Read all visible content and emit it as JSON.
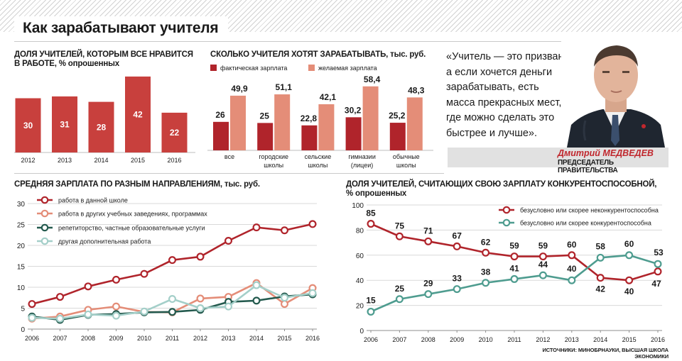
{
  "page": {
    "title": "Как зарабатывают учителя",
    "source": "ИСТОЧНИКИ: МИНОБРНАУКИ, ВЫСШАЯ ШКОЛА ЭКОНОМИКИ"
  },
  "quote": {
    "lines": [
      "«Учитель — это призвание,",
      "а если хочется деньги",
      "зарабатывать, есть",
      "масса прекрасных мест,",
      "где можно сделать это",
      "быстрее и лучше»."
    ],
    "name": "Дмитрий МЕДВЕДЕВ",
    "role": "ПРЕДСЕДАТЕЛЬ ПРАВИТЕЛЬСТВА"
  },
  "colors": {
    "dark_red": "#b0242b",
    "bar_red": "#c8403d",
    "salmon": "#e48d78",
    "dark_teal": "#245a4e",
    "teal": "#4e9c8f",
    "light_teal": "#a4cfc9",
    "grid": "#d9d9d9"
  },
  "chart_data": [
    {
      "id": "satisfied",
      "type": "bar",
      "title": "ДОЛЯ УЧИТЕЛЕЙ, КОТОРЫМ ВСЕ НРАВИТСЯ В РАБОТЕ, % опрошенных",
      "title_lines": [
        "ДОЛЯ УЧИТЕЛЕЙ, КОТОРЫМ ВСЕ НРАВИТСЯ",
        "В РАБОТЕ, % опрошенных"
      ],
      "categories": [
        "2012",
        "2013",
        "2014",
        "2015",
        "2016"
      ],
      "values": [
        30,
        31,
        28,
        42,
        22
      ],
      "data_labels": [
        "30",
        "31",
        "28",
        "42",
        "22"
      ],
      "ylim": [
        0,
        50
      ]
    },
    {
      "id": "wanted_salary",
      "type": "bar",
      "title": "СКОЛЬКО УЧИТЕЛЯ ХОТЯТ ЗАРАБАТЫВАТЬ, тыс. руб.",
      "categories": [
        "все",
        "городские школы",
        "сельские школы",
        "гимназии (лицеи)",
        "обычные школы"
      ],
      "category_lines": [
        [
          "все"
        ],
        [
          "городские",
          "школы"
        ],
        [
          "сельские",
          "школы"
        ],
        [
          "гимназии",
          "(лицеи)"
        ],
        [
          "обычные",
          "школы"
        ]
      ],
      "series": [
        {
          "name": "фактическая зарплата",
          "values": [
            26,
            25,
            22.8,
            30.2,
            25.2
          ],
          "labels": [
            "26",
            "25",
            "22,8",
            "30,2",
            "25,2"
          ]
        },
        {
          "name": "желаемая зарплата",
          "values": [
            49.9,
            51.1,
            42.1,
            58.4,
            48.3
          ],
          "labels": [
            "49,9",
            "51,1",
            "42,1",
            "58,4",
            "48,3"
          ]
        }
      ],
      "legend": "top",
      "ylim": [
        0,
        60
      ]
    },
    {
      "id": "avg_salary",
      "type": "line",
      "title": "СРЕДНЯЯ ЗАРПЛАТА ПО РАЗНЫМ НАПРАВЛЕНИЯМ, тыс. руб.",
      "x": [
        "2006",
        "2007",
        "2008",
        "2009",
        "2010",
        "2011",
        "2012",
        "2013",
        "2014",
        "2015",
        "2016"
      ],
      "series": [
        {
          "name": "работа в данной школе",
          "values": [
            6,
            7.7,
            10.2,
            11.8,
            13.2,
            16.5,
            17.3,
            21.1,
            24.3,
            23.6,
            25.1
          ]
        },
        {
          "name": "работа в других учебных заведениях, программах",
          "values": [
            2.5,
            3,
            4.6,
            5.4,
            4.1,
            4,
            7.3,
            7.7,
            11,
            6,
            9.8
          ]
        },
        {
          "name": "репетиторство, частные образовательные услуги",
          "values": [
            3,
            2.2,
            3.4,
            3.6,
            4,
            4.1,
            4.6,
            6.5,
            6.8,
            7.8,
            8.3
          ]
        },
        {
          "name": "другая дополнительная работа",
          "values": [
            2.7,
            2.5,
            3.5,
            3.2,
            4.2,
            7.2,
            5,
            5.4,
            10.5,
            7.5,
            8.6
          ]
        }
      ],
      "yticks": [
        0,
        5,
        10,
        15,
        20,
        25,
        30
      ],
      "ylim": [
        0,
        30
      ],
      "grid": true,
      "legend": "top-left"
    },
    {
      "id": "competitive",
      "type": "line",
      "title": "ДОЛЯ УЧИТЕЛЕЙ, СЧИТАЮЩИХ СВОЮ ЗАРПЛАТУ КОНКУРЕНТОСПОСОБНОЙ, % опрошенных",
      "title_lines": [
        "ДОЛЯ УЧИТЕЛЕЙ, СЧИТАЮЩИХ СВОЮ ЗАРПЛАТУ КОНКУРЕНТОСПОСОБНОЙ,",
        "% опрошенных"
      ],
      "x": [
        "2006",
        "2007",
        "2008",
        "2009",
        "2010",
        "2011",
        "2012",
        "2013",
        "2014",
        "2015",
        "2016"
      ],
      "series": [
        {
          "name": "безусловно или скорее неконкурентоспособна",
          "values": [
            85,
            75,
            71,
            67,
            62,
            59,
            59,
            60,
            42,
            40,
            47
          ],
          "labels": [
            "85",
            "75",
            "71",
            "67",
            "62",
            "59",
            "59",
            "60",
            "42",
            "40",
            "47"
          ]
        },
        {
          "name": "безусловно или скорее конкурентоспособна",
          "values": [
            15,
            25,
            29,
            33,
            38,
            41,
            44,
            40,
            58,
            60,
            53
          ],
          "labels": [
            "15",
            "25",
            "29",
            "33",
            "38",
            "41",
            "44",
            "40",
            "58",
            "60",
            "53"
          ]
        }
      ],
      "yticks": [
        0,
        20,
        40,
        60,
        80,
        100
      ],
      "ylim": [
        0,
        100
      ],
      "grid": true,
      "legend": "top-right"
    }
  ]
}
